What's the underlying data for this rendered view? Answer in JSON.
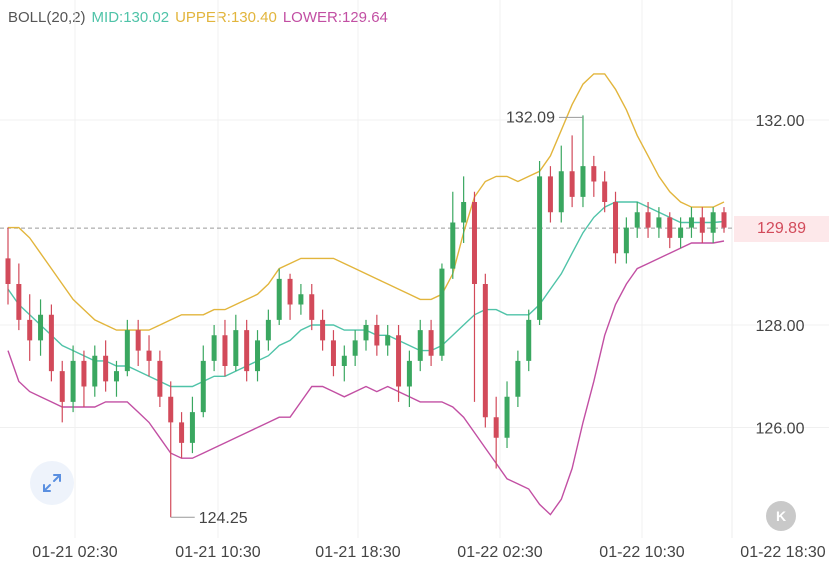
{
  "indicator": {
    "name": "BOLL(20,2)",
    "mid": "MID:130.02",
    "upper": "UPPER:130.40",
    "lower": "LOWER:129.64"
  },
  "colors": {
    "up": "#3aa760",
    "down": "#d24a5a",
    "mid": "#4fc3a8",
    "upper": "#e2b53c",
    "lower": "#c24fa3",
    "grid": "#f0f0f0",
    "text": "#444444"
  },
  "current_price": "129.89",
  "controls": {
    "expand_icon": "expand-arrows-icon",
    "collapse_icon": "collapse-k-icon",
    "collapse_label": "K"
  },
  "chart_data": {
    "type": "candlestick",
    "y_ticks": [
      "132.00",
      "128.00",
      "126.00"
    ],
    "x_ticks": [
      "01-21 02:30",
      "01-21 10:30",
      "01-21 18:30",
      "01-22 02:30",
      "01-22 10:30",
      "01-22 18:30"
    ],
    "annotations": {
      "high": "132.09",
      "low": "124.25"
    },
    "current_price": 129.89,
    "candles": [
      [
        129.3,
        128.8,
        129.9,
        128.4
      ],
      [
        128.8,
        128.1,
        129.2,
        127.9
      ],
      [
        128.1,
        127.7,
        128.6,
        127.3
      ],
      [
        127.7,
        128.2,
        128.5,
        127.4
      ],
      [
        128.2,
        127.1,
        128.4,
        126.9
      ],
      [
        127.1,
        126.5,
        127.3,
        126.1
      ],
      [
        126.5,
        127.3,
        127.6,
        126.3
      ],
      [
        127.3,
        126.8,
        127.5,
        126.4
      ],
      [
        126.8,
        127.4,
        127.6,
        126.6
      ],
      [
        127.4,
        126.9,
        127.7,
        126.7
      ],
      [
        126.9,
        127.1,
        127.3,
        126.6
      ],
      [
        127.1,
        127.9,
        128.1,
        127.0
      ],
      [
        127.9,
        127.5,
        128.1,
        127.2
      ],
      [
        127.5,
        127.3,
        127.8,
        127.0
      ],
      [
        127.3,
        126.6,
        127.5,
        126.4
      ],
      [
        126.6,
        126.1,
        126.9,
        124.25
      ],
      [
        126.1,
        125.7,
        126.3,
        125.4
      ],
      [
        125.7,
        126.3,
        126.6,
        125.5
      ],
      [
        126.3,
        127.3,
        127.6,
        126.2
      ],
      [
        127.3,
        127.8,
        128.0,
        127.1
      ],
      [
        127.8,
        127.2,
        128.1,
        127.0
      ],
      [
        127.2,
        127.9,
        128.2,
        127.1
      ],
      [
        127.9,
        127.1,
        128.1,
        126.9
      ],
      [
        127.1,
        127.7,
        127.9,
        126.9
      ],
      [
        127.7,
        128.1,
        128.3,
        127.5
      ],
      [
        128.1,
        128.9,
        129.1,
        128.0
      ],
      [
        128.9,
        128.4,
        129.0,
        128.1
      ],
      [
        128.4,
        128.6,
        128.8,
        128.2
      ],
      [
        128.6,
        128.1,
        128.8,
        127.9
      ],
      [
        128.1,
        127.7,
        128.3,
        127.5
      ],
      [
        127.7,
        127.2,
        127.9,
        127.0
      ],
      [
        127.2,
        127.4,
        127.6,
        126.9
      ],
      [
        127.4,
        127.7,
        127.9,
        127.2
      ],
      [
        127.7,
        128.0,
        128.1,
        127.5
      ],
      [
        128.0,
        127.6,
        128.2,
        127.4
      ],
      [
        127.6,
        127.8,
        128.0,
        127.4
      ],
      [
        127.8,
        126.8,
        128.0,
        126.5
      ],
      [
        126.8,
        127.3,
        127.5,
        126.4
      ],
      [
        127.3,
        127.9,
        128.1,
        127.1
      ],
      [
        127.9,
        127.4,
        128.1,
        127.2
      ],
      [
        127.4,
        129.1,
        129.2,
        127.3
      ],
      [
        129.1,
        130.0,
        130.6,
        128.9
      ],
      [
        130.0,
        130.4,
        130.9,
        129.6
      ],
      [
        130.4,
        128.8,
        130.6,
        126.5
      ],
      [
        128.8,
        126.2,
        129.0,
        126.0
      ],
      [
        126.2,
        125.8,
        126.6,
        125.2
      ],
      [
        125.8,
        126.6,
        126.9,
        125.6
      ],
      [
        126.6,
        127.3,
        127.5,
        126.4
      ],
      [
        127.3,
        128.1,
        128.3,
        127.1
      ],
      [
        128.1,
        130.9,
        131.2,
        128.0
      ],
      [
        130.9,
        130.2,
        131.1,
        130.0
      ],
      [
        130.2,
        131.0,
        131.5,
        130.0
      ],
      [
        131.0,
        130.5,
        131.7,
        130.3
      ],
      [
        130.5,
        131.1,
        132.09,
        130.3
      ],
      [
        131.1,
        130.8,
        131.3,
        130.5
      ],
      [
        130.8,
        130.4,
        131.0,
        130.2
      ],
      [
        130.4,
        129.4,
        130.6,
        129.2
      ],
      [
        129.4,
        129.9,
        130.1,
        129.2
      ],
      [
        129.9,
        130.2,
        130.4,
        129.7
      ],
      [
        130.2,
        129.9,
        130.4,
        129.7
      ],
      [
        129.9,
        130.1,
        130.3,
        129.7
      ],
      [
        130.1,
        129.7,
        130.2,
        129.5
      ],
      [
        129.7,
        129.9,
        130.1,
        129.5
      ],
      [
        129.9,
        130.1,
        130.3,
        129.7
      ],
      [
        130.1,
        129.8,
        130.3,
        129.6
      ],
      [
        129.8,
        130.2,
        130.3,
        129.6
      ],
      [
        130.2,
        129.9,
        130.3,
        129.8
      ]
    ],
    "boll_mid": [
      128.7,
      128.4,
      128.2,
      128.0,
      127.8,
      127.6,
      127.5,
      127.4,
      127.3,
      127.3,
      127.2,
      127.2,
      127.1,
      127.0,
      126.9,
      126.8,
      126.8,
      126.8,
      126.9,
      127.0,
      127.0,
      127.1,
      127.2,
      127.3,
      127.4,
      127.6,
      127.7,
      127.9,
      128.0,
      128.0,
      128.0,
      127.9,
      127.9,
      127.9,
      127.8,
      127.8,
      127.7,
      127.6,
      127.5,
      127.5,
      127.6,
      127.8,
      128.0,
      128.2,
      128.3,
      128.3,
      128.2,
      128.2,
      128.2,
      128.4,
      128.7,
      129.0,
      129.4,
      129.8,
      130.1,
      130.3,
      130.4,
      130.4,
      130.4,
      130.3,
      130.2,
      130.1,
      130.0,
      130.0,
      130.0,
      130.0,
      130.02
    ],
    "boll_upper": [
      129.9,
      129.9,
      129.7,
      129.4,
      129.1,
      128.8,
      128.5,
      128.3,
      128.1,
      128.0,
      127.9,
      127.9,
      127.9,
      127.9,
      128.0,
      128.1,
      128.2,
      128.2,
      128.2,
      128.3,
      128.3,
      128.4,
      128.5,
      128.6,
      128.8,
      129.1,
      129.2,
      129.3,
      129.3,
      129.3,
      129.3,
      129.2,
      129.1,
      129.0,
      128.9,
      128.8,
      128.7,
      128.6,
      128.5,
      128.5,
      128.6,
      129.0,
      129.8,
      130.5,
      130.8,
      130.9,
      130.9,
      130.8,
      130.9,
      131.0,
      131.3,
      131.8,
      132.3,
      132.7,
      132.9,
      132.9,
      132.6,
      132.2,
      131.7,
      131.3,
      130.9,
      130.6,
      130.4,
      130.3,
      130.3,
      130.3,
      130.4
    ],
    "boll_lower": [
      127.5,
      126.9,
      126.7,
      126.6,
      126.5,
      126.4,
      126.4,
      126.4,
      126.4,
      126.5,
      126.5,
      126.5,
      126.3,
      126.1,
      125.8,
      125.5,
      125.4,
      125.4,
      125.5,
      125.6,
      125.7,
      125.8,
      125.9,
      126.0,
      126.1,
      126.2,
      126.2,
      126.5,
      126.8,
      126.8,
      126.7,
      126.6,
      126.7,
      126.8,
      126.7,
      126.8,
      126.7,
      126.6,
      126.5,
      126.5,
      126.5,
      126.4,
      126.2,
      125.9,
      125.6,
      125.3,
      125.0,
      124.9,
      124.8,
      124.5,
      124.3,
      124.6,
      125.2,
      126.1,
      126.9,
      127.8,
      128.4,
      128.8,
      129.1,
      129.2,
      129.3,
      129.4,
      129.5,
      129.6,
      129.6,
      129.6,
      129.64
    ]
  }
}
